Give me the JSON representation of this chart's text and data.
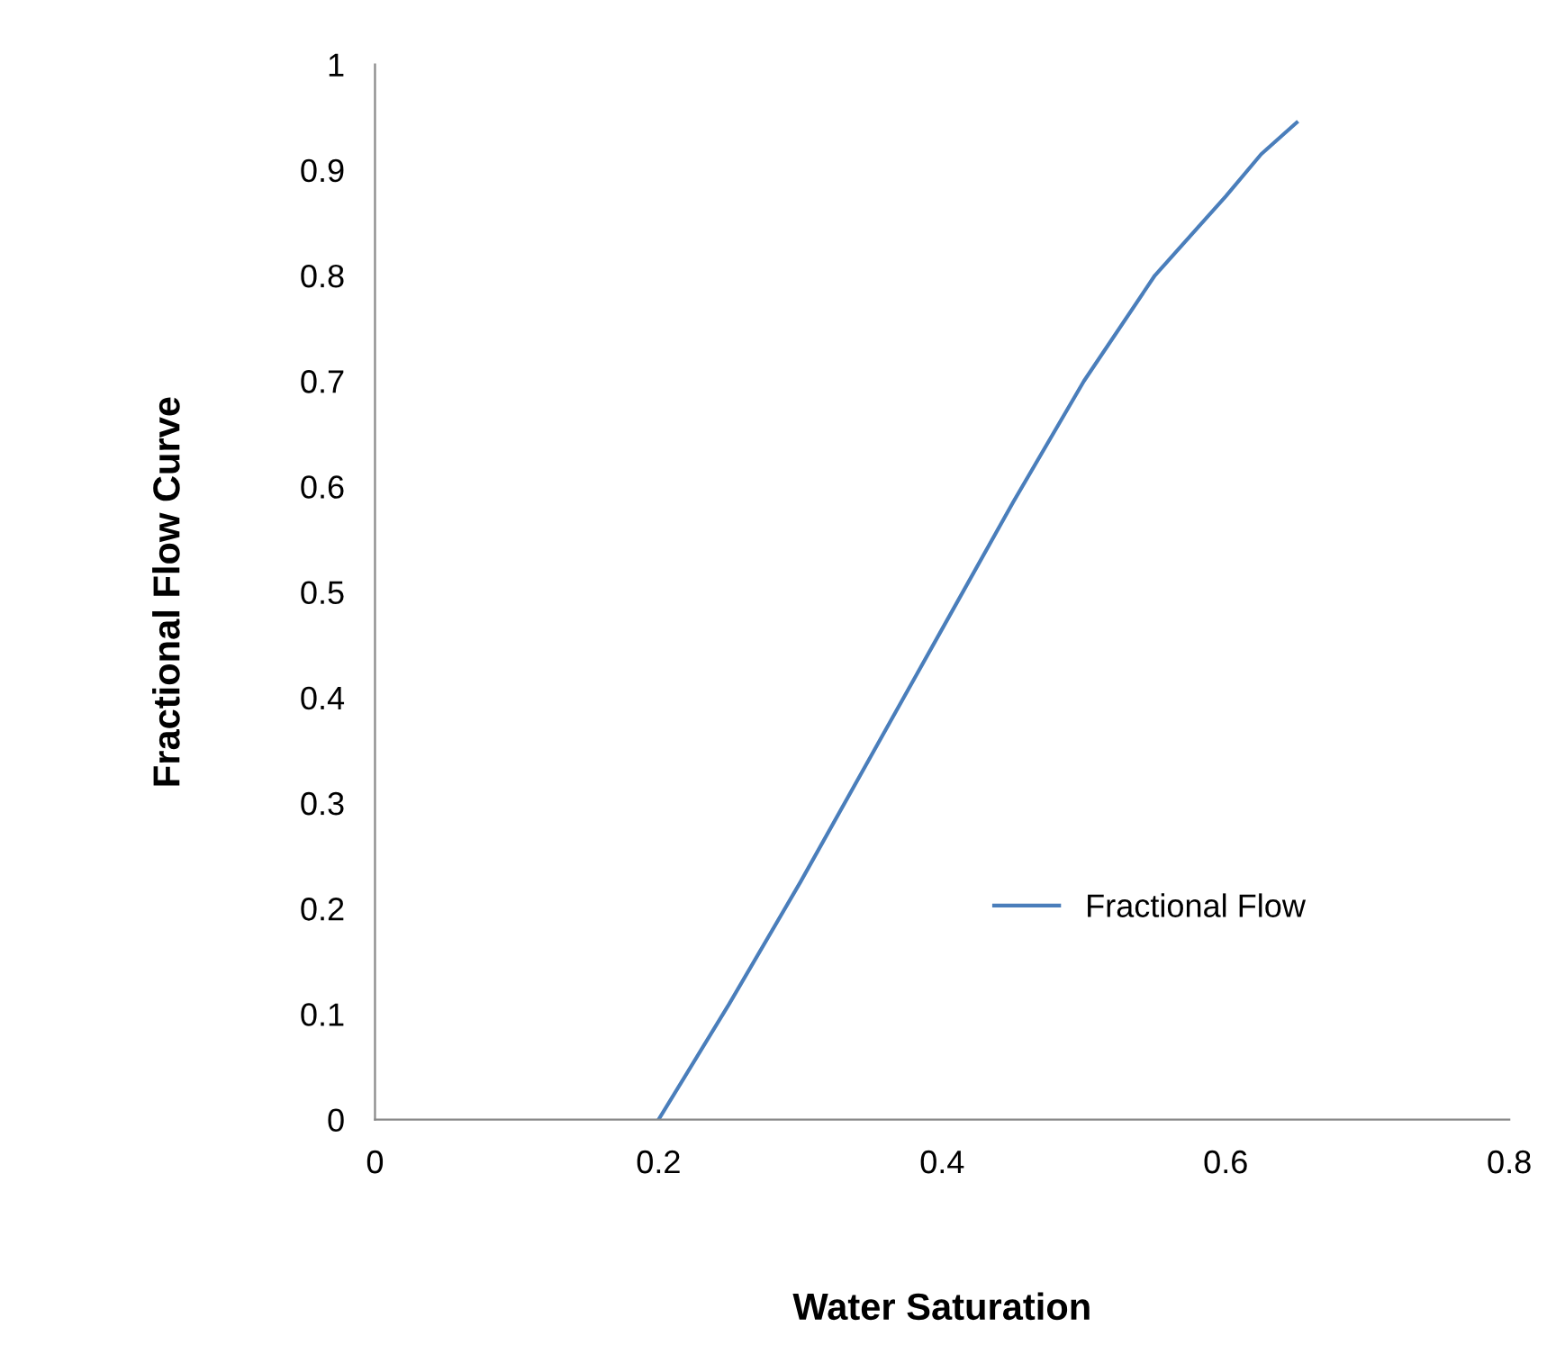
{
  "chart_data": {
    "type": "line",
    "xlabel": "Water Saturation",
    "ylabel": "Fractional Flow Curve",
    "x": [
      0.2,
      0.25,
      0.3,
      0.35,
      0.4,
      0.45,
      0.5,
      0.55,
      0.6,
      0.625,
      0.65
    ],
    "series": [
      {
        "name": "Fractional Flow",
        "color": "#4a7ebb",
        "values": [
          0,
          0.11,
          0.225,
          0.345,
          0.465,
          0.585,
          0.7,
          0.8,
          0.875,
          0.915,
          0.945
        ]
      }
    ],
    "xlim": [
      0,
      0.8
    ],
    "xticks": [
      0,
      0.2,
      0.4,
      0.6,
      0.8
    ],
    "ylim": [
      0,
      1
    ],
    "yticks": [
      0,
      0.1,
      0.2,
      0.3,
      0.4,
      0.5,
      0.6,
      0.7,
      0.8,
      0.9,
      1
    ],
    "grid": false,
    "legend": "right",
    "marker": "none",
    "line_style": "solid"
  }
}
